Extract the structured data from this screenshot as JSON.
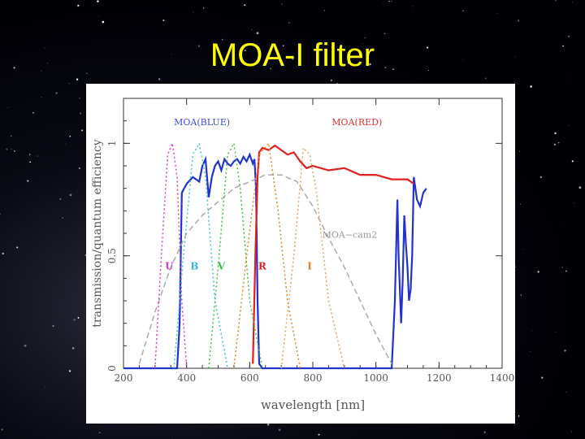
{
  "slide": {
    "title": "MOA-I filter"
  },
  "chart_data": {
    "type": "line",
    "xlabel": "wavelength [nm]",
    "ylabel": "transmission/quantum efficiency",
    "xlim": [
      200,
      1400
    ],
    "ylim": [
      0,
      1.2
    ],
    "xticks": [
      200,
      400,
      600,
      800,
      1000,
      1200,
      1400
    ],
    "yticks": [
      0,
      0.5,
      1
    ],
    "legend_labels": [
      {
        "text": "MOA(BLUE)",
        "color": "#3a4fd8"
      },
      {
        "text": "MOA(RED)",
        "color": "#e03030"
      }
    ],
    "curve_labels": [
      {
        "text": "MOA−cam2",
        "color": "#999999"
      }
    ],
    "band_labels": [
      {
        "text": "U",
        "color": "#d040c0"
      },
      {
        "text": "B",
        "color": "#40b0d0"
      },
      {
        "text": "V",
        "color": "#40c040"
      },
      {
        "text": "R",
        "color": "#e02020"
      },
      {
        "text": "I",
        "color": "#e08020"
      }
    ],
    "series": [
      {
        "color": "#2233cc",
        "style": "solid",
        "x": [
          200,
          370,
          378,
          385,
          400,
          420,
          440,
          450,
          460,
          470,
          480,
          490,
          500,
          510,
          520,
          530,
          540,
          550,
          560,
          570,
          580,
          590,
          600,
          610,
          615,
          620,
          625,
          630,
          640,
          700,
          1000,
          1050,
          1060,
          1068,
          1072,
          1080,
          1085,
          1090,
          1095,
          1100,
          1105,
          1110,
          1115,
          1120,
          1130,
          1140,
          1150,
          1160
        ],
        "y": [
          0,
          0,
          0.2,
          0.78,
          0.82,
          0.85,
          0.83,
          0.9,
          0.93,
          0.76,
          0.85,
          0.9,
          0.92,
          0.88,
          0.93,
          0.91,
          0.9,
          0.92,
          0.93,
          0.91,
          0.94,
          0.92,
          0.95,
          0.91,
          0.93,
          0.8,
          0.3,
          0.02,
          0,
          0,
          0,
          0,
          0.3,
          0.75,
          0.5,
          0.2,
          0.4,
          0.68,
          0.55,
          0.45,
          0.3,
          0.35,
          0.5,
          0.85,
          0.75,
          0.72,
          0.78,
          0.8
        ]
      },
      {
        "color": "#e02020",
        "style": "solid",
        "x": [
          610,
          618,
          625,
          630,
          640,
          660,
          680,
          700,
          720,
          740,
          760,
          780,
          800,
          850,
          900,
          950,
          1000,
          1050,
          1100,
          1120
        ],
        "y": [
          0.02,
          0.5,
          0.85,
          0.96,
          0.98,
          0.97,
          0.99,
          0.97,
          0.95,
          0.96,
          0.92,
          0.89,
          0.9,
          0.88,
          0.89,
          0.86,
          0.86,
          0.84,
          0.84,
          0.82
        ]
      },
      {
        "color": "#aaaaaa",
        "style": "dashed",
        "x": [
          250,
          300,
          350,
          400,
          450,
          500,
          550,
          600,
          650,
          700,
          750,
          800,
          850,
          900,
          950,
          1000,
          1050
        ],
        "y": [
          0.02,
          0.25,
          0.45,
          0.6,
          0.68,
          0.74,
          0.8,
          0.83,
          0.86,
          0.86,
          0.83,
          0.72,
          0.58,
          0.45,
          0.3,
          0.15,
          0.02
        ]
      },
      {
        "color": "#d040c0",
        "style": "dotted",
        "x": [
          300,
          320,
          340,
          355,
          370,
          385,
          400
        ],
        "y": [
          0,
          0.5,
          0.95,
          1.0,
          0.85,
          0.3,
          0
        ]
      },
      {
        "color": "#40c0d0",
        "style": "dotted",
        "x": [
          360,
          390,
          420,
          440,
          460,
          490,
          530
        ],
        "y": [
          0,
          0.5,
          0.95,
          1.0,
          0.85,
          0.3,
          0
        ]
      },
      {
        "color": "#40c040",
        "style": "dotted",
        "x": [
          470,
          500,
          530,
          550,
          570,
          600,
          640
        ],
        "y": [
          0,
          0.45,
          0.95,
          1.0,
          0.8,
          0.3,
          0
        ]
      },
      {
        "color": "#e08020",
        "style": "dotted",
        "x": [
          550,
          590,
          630,
          660,
          690,
          720,
          760
        ],
        "y": [
          0,
          0.5,
          0.95,
          1.0,
          0.7,
          0.3,
          0
        ]
      },
      {
        "color": "#e8a060",
        "style": "dotted",
        "x": [
          700,
          740,
          770,
          790,
          810,
          850,
          900
        ],
        "y": [
          0,
          0.5,
          0.98,
          0.95,
          0.8,
          0.3,
          0
        ]
      }
    ]
  }
}
